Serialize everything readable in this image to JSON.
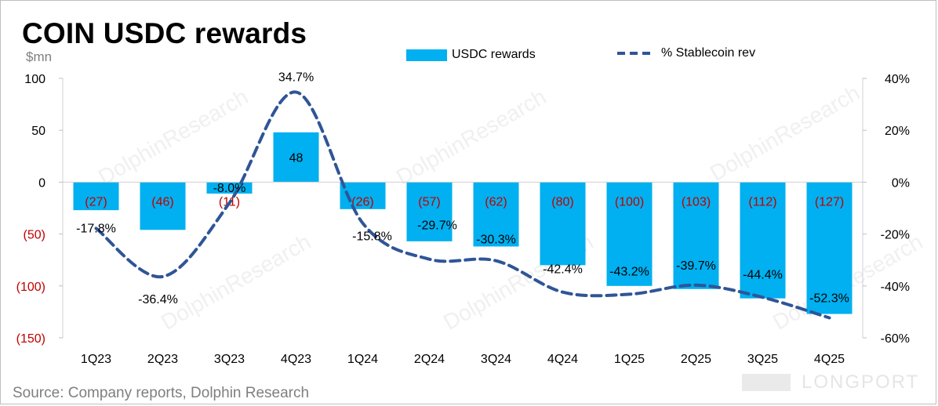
{
  "chart_data": {
    "type": "bar+line",
    "title": "COIN USDC rewards",
    "unit_label": "$mn",
    "categories": [
      "1Q23",
      "2Q23",
      "3Q23",
      "4Q23",
      "1Q24",
      "2Q24",
      "3Q24",
      "4Q24",
      "1Q25",
      "2Q25",
      "3Q25",
      "4Q25"
    ],
    "series": [
      {
        "name": "USDC rewards",
        "kind": "bar",
        "axis": "left",
        "color": "#00b0f0",
        "values": [
          -27,
          -46,
          -11,
          48,
          -26,
          -57,
          -62,
          -80,
          -100,
          -103,
          -112,
          -127
        ],
        "labels": [
          "(27)",
          "(46)",
          "(11)",
          "48",
          "(26)",
          "(57)",
          "(62)",
          "(80)",
          "(100)",
          "(103)",
          "(112)",
          "(127)"
        ]
      },
      {
        "name": "% Stablecoin rev",
        "kind": "line",
        "style": "dashed-smooth",
        "axis": "right",
        "color": "#2f5597",
        "values": [
          -17.8,
          -36.4,
          -8.0,
          34.7,
          -15.8,
          -29.7,
          -30.3,
          -42.4,
          -43.2,
          -39.7,
          -44.4,
          -52.3
        ],
        "labels": [
          "-17.8%",
          "-36.4%",
          "-8.0%",
          "34.7%",
          "-15.8%",
          "-29.7%",
          "-30.3%",
          "-42.4%",
          "-43.2%",
          "-39.7%",
          "-44.4%",
          "-52.3%"
        ]
      }
    ],
    "y_left": {
      "lim": [
        -150,
        100
      ],
      "ticks": [
        100,
        50,
        0,
        -50,
        -100,
        -150
      ],
      "tick_labels": [
        "100",
        "50",
        "0",
        "(50)",
        "(100)",
        "(150)"
      ]
    },
    "y_right": {
      "lim": [
        -60,
        40
      ],
      "ticks": [
        40,
        20,
        0,
        -20,
        -40,
        -60
      ],
      "tick_labels": [
        "40%",
        "20%",
        "0%",
        "-20%",
        "-40%",
        "-60%"
      ]
    },
    "negative_label_color": "#c00000",
    "grid": false,
    "legend_placement": "top"
  },
  "legend": {
    "bar_label": "USDC rewards",
    "line_label": "% Stablecoin rev"
  },
  "source": "Source:  Company reports, Dolphin Research",
  "watermark": "DolphinResearch",
  "brand": "LONGPORT"
}
